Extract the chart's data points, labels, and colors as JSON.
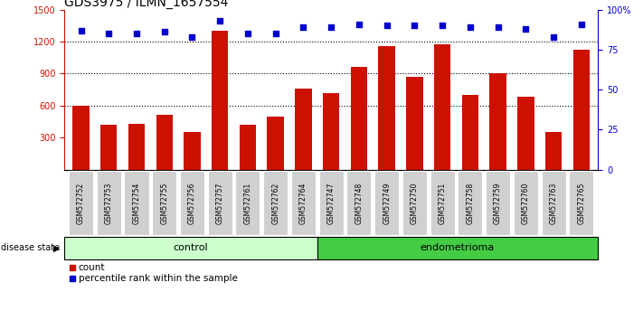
{
  "title": "GDS3975 / ILMN_1657554",
  "samples": [
    "GSM572752",
    "GSM572753",
    "GSM572754",
    "GSM572755",
    "GSM572756",
    "GSM572757",
    "GSM572761",
    "GSM572762",
    "GSM572764",
    "GSM572747",
    "GSM572748",
    "GSM572749",
    "GSM572750",
    "GSM572751",
    "GSM572758",
    "GSM572759",
    "GSM572760",
    "GSM572763",
    "GSM572765"
  ],
  "counts": [
    600,
    420,
    430,
    510,
    350,
    1300,
    420,
    500,
    760,
    720,
    960,
    1160,
    870,
    1175,
    700,
    900,
    680,
    350,
    1120
  ],
  "percentiles": [
    87,
    85,
    85,
    86,
    83,
    93,
    85,
    85,
    89,
    89,
    91,
    90,
    90,
    90,
    89,
    89,
    88,
    83,
    91
  ],
  "control_count": 9,
  "ylim_left": [
    0,
    1500
  ],
  "ylim_right": [
    0,
    100
  ],
  "yticks_left": [
    300,
    600,
    900,
    1200,
    1500
  ],
  "yticks_right": [
    0,
    25,
    50,
    75,
    100
  ],
  "bar_color": "#cc1100",
  "dot_color": "#0000cc",
  "control_bg": "#ccffcc",
  "endometrioma_bg": "#44cc44",
  "label_bg": "#d0d0d0",
  "grid_color": "#000000",
  "title_fontsize": 10,
  "tick_fontsize": 7,
  "label_fontsize": 7,
  "legend_fontsize": 7.5
}
